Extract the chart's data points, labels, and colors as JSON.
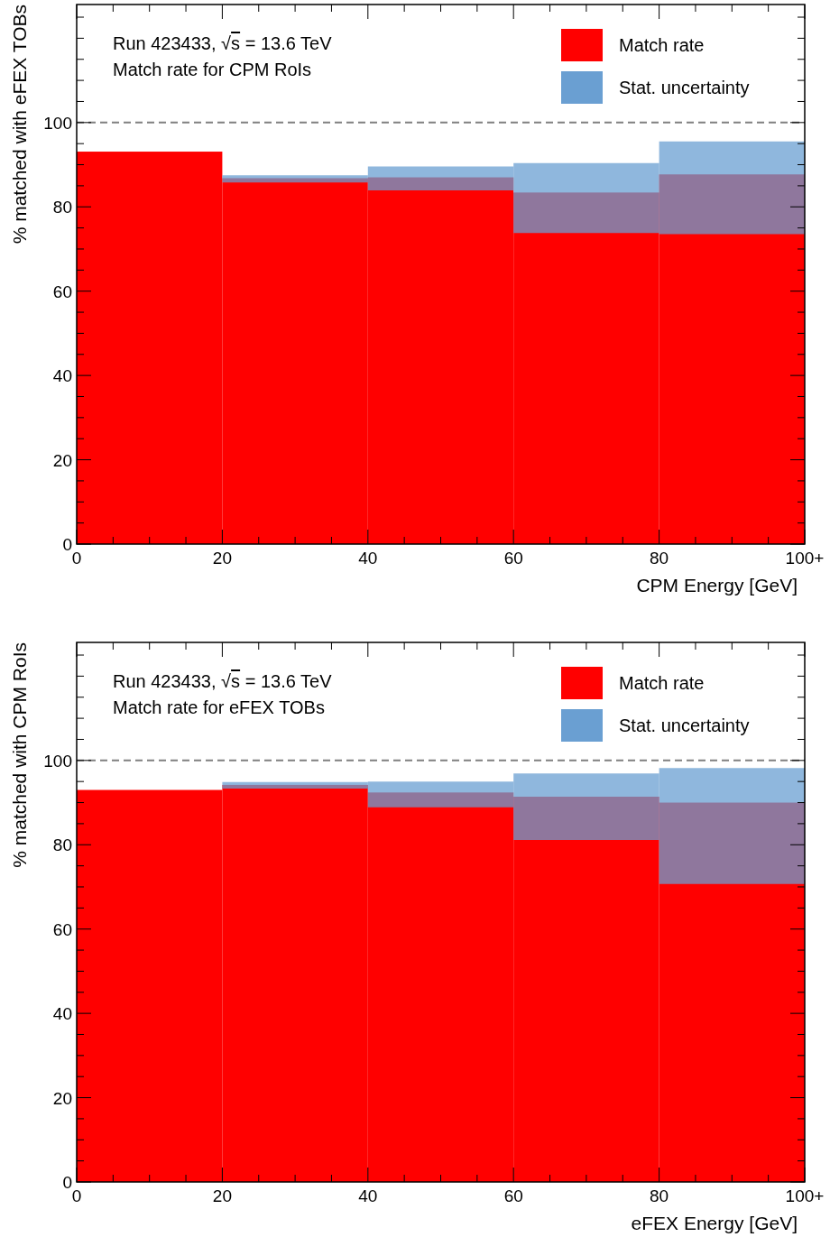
{
  "chart_data": [
    {
      "type": "histogram",
      "bins": [
        0,
        20,
        40,
        60,
        80,
        100
      ],
      "xlabel": "CPM Energy [GeV]",
      "ylabel": "% matched with eFEX TOBs",
      "annotations": [
        "Run 423433, √s = 13.6 TeV",
        "Match rate for CPM RoIs",
        "Stat. uncertainty"
      ],
      "series": [
        {
          "name": "Match rate",
          "color": "#ff0000",
          "values": [
            93.1,
            86.8,
            87.0,
            83.4,
            87.7
          ],
          "errors": [
            null,
            [
              85.8,
              87.5
            ],
            [
              83.9,
              89.6
            ],
            [
              73.8,
              90.4
            ],
            [
              73.5,
              95.5
            ]
          ]
        }
      ],
      "xlim": [
        0,
        100
      ],
      "ylim": [
        0,
        128
      ],
      "xticks": [
        0,
        {
          "value": 5,
          "label": null
        },
        {
          "value": 10,
          "label": null
        },
        {
          "value": 15,
          "label": null
        },
        20,
        {
          "value": 25,
          "label": null
        },
        {
          "value": 30,
          "label": null
        },
        {
          "value": 35,
          "label": null
        },
        40,
        {
          "value": 45,
          "label": null
        },
        {
          "value": 50,
          "label": null
        },
        {
          "value": 55,
          "label": null
        },
        60,
        {
          "value": 65,
          "label": null
        },
        {
          "value": 70,
          "label": null
        },
        {
          "value": 75,
          "label": null
        },
        80,
        {
          "value": 85,
          "label": null
        },
        {
          "value": 90,
          "label": null
        },
        {
          "value": 95,
          "label": null
        },
        {
          "value": 100,
          "label": "100+"
        }
      ],
      "yticks": [
        0,
        {
          "value": 5,
          "label": null
        },
        {
          "value": 10,
          "label": null
        },
        {
          "value": 15,
          "label": null
        },
        20,
        {
          "value": 25,
          "label": null
        },
        {
          "value": 30,
          "label": null
        },
        {
          "value": 35,
          "label": null
        },
        40,
        {
          "value": 45,
          "label": null
        },
        {
          "value": 50,
          "label": null
        },
        {
          "value": 55,
          "label": null
        },
        60,
        {
          "value": 65,
          "label": null
        },
        {
          "value": 70,
          "label": null
        },
        {
          "value": 75,
          "label": null
        },
        80,
        {
          "value": 85,
          "label": null
        },
        {
          "value": 90,
          "label": null
        },
        {
          "value": 95,
          "label": null
        },
        100,
        {
          "value": 105,
          "label": null
        },
        {
          "value": 110,
          "label": null
        },
        {
          "value": 115,
          "label": null
        },
        {
          "value": 120,
          "label": null
        },
        {
          "value": 125,
          "label": null
        }
      ],
      "ref_lines": [
        {
          "axis": "y",
          "value": 100,
          "color": "#808080",
          "line_style": "dashed"
        }
      ],
      "legend": "top right"
    },
    {
      "type": "histogram",
      "bins": [
        0,
        20,
        40,
        60,
        80,
        100
      ],
      "xlabel": "eFEX Energy [GeV]",
      "ylabel": "% matched with CPM RoIs",
      "annotations": [
        "Run 423433, √s = 13.6 TeV",
        "Match rate for eFEX TOBs",
        "Stat. uncertainty"
      ],
      "series": [
        {
          "name": "Match rate",
          "color": "#ff0000",
          "values": [
            93.0,
            94.2,
            92.4,
            91.4,
            90.0
          ],
          "errors": [
            null,
            [
              93.3,
              94.9
            ],
            [
              88.9,
              95.0
            ],
            [
              81.1,
              96.9
            ],
            [
              70.7,
              98.2
            ]
          ]
        }
      ],
      "xlim": [
        0,
        100
      ],
      "ylim": [
        0,
        128
      ],
      "xticks": [
        0,
        {
          "value": 5,
          "label": null
        },
        {
          "value": 10,
          "label": null
        },
        {
          "value": 15,
          "label": null
        },
        20,
        {
          "value": 25,
          "label": null
        },
        {
          "value": 30,
          "label": null
        },
        {
          "value": 35,
          "label": null
        },
        40,
        {
          "value": 45,
          "label": null
        },
        {
          "value": 50,
          "label": null
        },
        {
          "value": 55,
          "label": null
        },
        60,
        {
          "value": 65,
          "label": null
        },
        {
          "value": 70,
          "label": null
        },
        {
          "value": 75,
          "label": null
        },
        80,
        {
          "value": 85,
          "label": null
        },
        {
          "value": 90,
          "label": null
        },
        {
          "value": 95,
          "label": null
        },
        {
          "value": 100,
          "label": "100+"
        }
      ],
      "yticks": [
        0,
        {
          "value": 5,
          "label": null
        },
        {
          "value": 10,
          "label": null
        },
        {
          "value": 15,
          "label": null
        },
        20,
        {
          "value": 25,
          "label": null
        },
        {
          "value": 30,
          "label": null
        },
        {
          "value": 35,
          "label": null
        },
        40,
        {
          "value": 45,
          "label": null
        },
        {
          "value": 50,
          "label": null
        },
        {
          "value": 55,
          "label": null
        },
        60,
        {
          "value": 65,
          "label": null
        },
        {
          "value": 70,
          "label": null
        },
        {
          "value": 75,
          "label": null
        },
        80,
        {
          "value": 85,
          "label": null
        },
        {
          "value": 90,
          "label": null
        },
        {
          "value": 95,
          "label": null
        },
        100,
        {
          "value": 105,
          "label": null
        },
        {
          "value": 110,
          "label": null
        },
        {
          "value": 115,
          "label": null
        },
        {
          "value": 120,
          "label": null
        },
        {
          "value": 125,
          "label": null
        }
      ],
      "ref_lines": [
        {
          "axis": "y",
          "value": 100,
          "color": "#808080",
          "line_style": "dashed"
        }
      ],
      "legend": "top right"
    }
  ]
}
